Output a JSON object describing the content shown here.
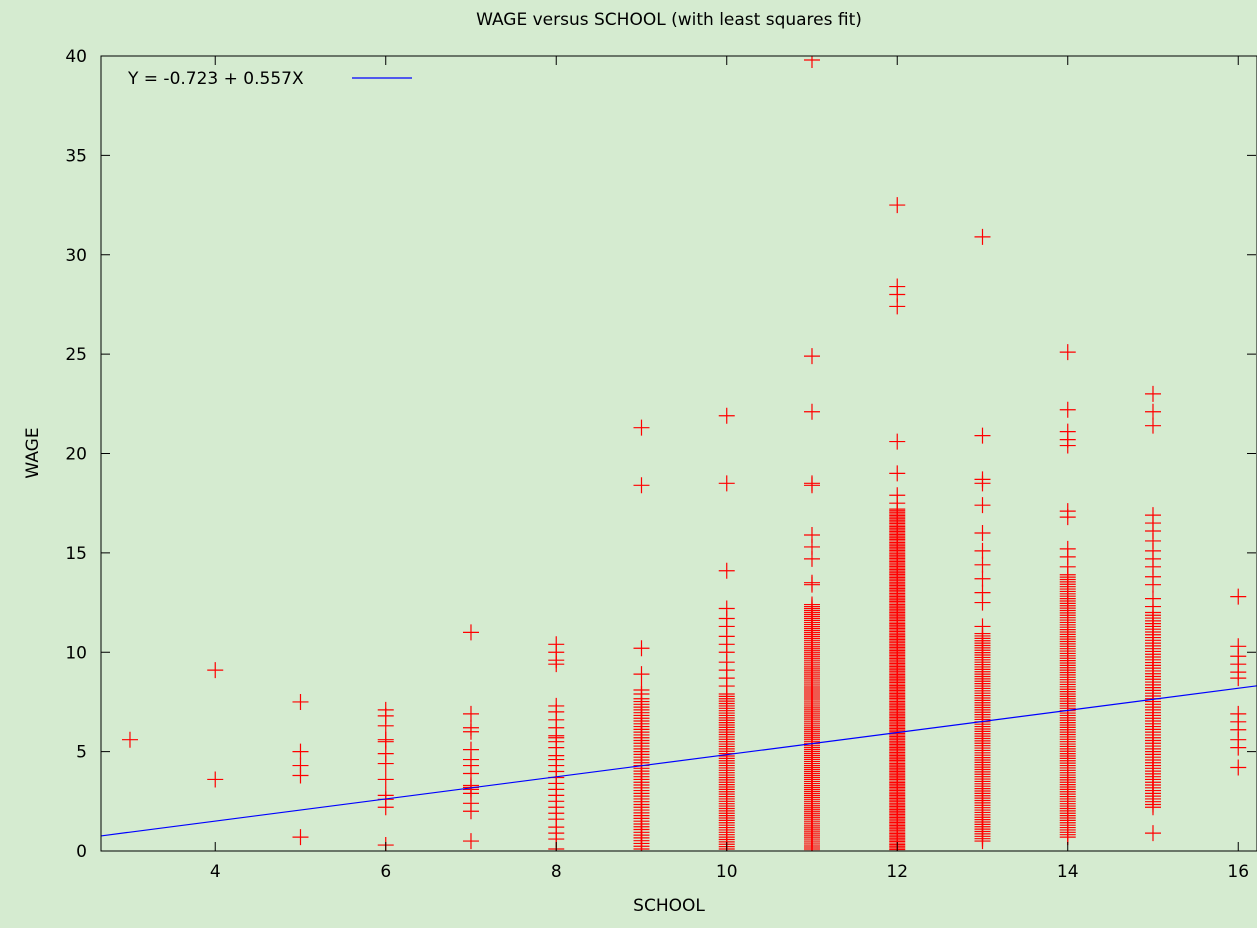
{
  "chart_data": {
    "type": "scatter",
    "title": "WAGE versus SCHOOL (with least squares fit)",
    "xlabel": "SCHOOL",
    "ylabel": "WAGE",
    "xlim": [
      2.66,
      16.22
    ],
    "ylim": [
      0,
      40
    ],
    "xticks": [
      4,
      6,
      8,
      10,
      12,
      14,
      16
    ],
    "yticks": [
      0,
      5,
      10,
      15,
      20,
      25,
      30,
      35,
      40
    ],
    "grid": false,
    "legend_position": "top-left",
    "series": [
      {
        "kind": "points",
        "marker": "+",
        "color": "#ff0000",
        "points": [
          [
            3,
            5.6
          ],
          [
            4,
            9.1
          ],
          [
            4,
            3.6
          ],
          [
            5,
            7.5
          ],
          [
            5,
            5.0
          ],
          [
            5,
            4.3
          ],
          [
            5,
            3.8
          ],
          [
            5,
            0.7
          ],
          [
            6,
            7.1
          ],
          [
            6,
            6.8
          ],
          [
            6,
            6.3
          ],
          [
            6,
            5.6
          ],
          [
            6,
            5.5
          ],
          [
            6,
            4.9
          ],
          [
            6,
            4.4
          ],
          [
            6,
            3.6
          ],
          [
            6,
            2.8
          ],
          [
            6,
            2.6
          ],
          [
            6,
            2.2
          ],
          [
            6,
            0.3
          ],
          [
            7,
            11.0
          ],
          [
            7,
            6.9
          ],
          [
            7,
            6.2
          ],
          [
            7,
            6.0
          ],
          [
            7,
            5.1
          ],
          [
            7,
            4.6
          ],
          [
            7,
            4.3
          ],
          [
            7,
            3.9
          ],
          [
            7,
            3.3
          ],
          [
            7,
            3.2
          ],
          [
            7,
            3.1
          ],
          [
            7,
            2.9
          ],
          [
            7,
            2.4
          ],
          [
            7,
            2.0
          ],
          [
            7,
            0.5
          ],
          [
            8,
            10.4
          ],
          [
            8,
            10.0
          ],
          [
            8,
            9.6
          ],
          [
            8,
            9.4
          ],
          [
            8,
            7.3
          ],
          [
            8,
            7.0
          ],
          [
            8,
            6.6
          ],
          [
            8,
            6.2
          ],
          [
            8,
            5.8
          ],
          [
            8,
            5.7
          ],
          [
            8,
            5.5
          ],
          [
            8,
            5.2
          ],
          [
            8,
            4.8
          ],
          [
            8,
            4.6
          ],
          [
            8,
            4.3
          ],
          [
            8,
            4.0
          ],
          [
            8,
            3.7
          ],
          [
            8,
            3.4
          ],
          [
            8,
            3.1
          ],
          [
            8,
            2.8
          ],
          [
            8,
            2.5
          ],
          [
            8,
            2.2
          ],
          [
            8,
            1.9
          ],
          [
            8,
            1.6
          ],
          [
            8,
            1.2
          ],
          [
            8,
            0.9
          ],
          [
            8,
            0.6
          ],
          [
            8,
            0.1
          ],
          [
            9,
            21.3
          ],
          [
            9,
            18.4
          ],
          [
            9,
            10.2
          ],
          [
            9,
            8.9
          ],
          [
            9,
            8.1
          ],
          [
            9,
            7.9
          ],
          [
            10,
            21.9
          ],
          [
            10,
            18.5
          ],
          [
            10,
            14.1
          ],
          [
            10,
            12.2
          ],
          [
            10,
            11.7
          ],
          [
            10,
            11.3
          ],
          [
            10,
            10.8
          ],
          [
            10,
            10.4
          ],
          [
            10,
            10.0
          ],
          [
            10,
            9.5
          ],
          [
            10,
            9.1
          ],
          [
            10,
            8.7
          ],
          [
            10,
            8.3
          ],
          [
            11,
            39.8
          ],
          [
            11,
            24.9
          ],
          [
            11,
            22.1
          ],
          [
            11,
            18.5
          ],
          [
            11,
            18.4
          ],
          [
            11,
            15.9
          ],
          [
            11,
            15.3
          ],
          [
            11,
            14.7
          ],
          [
            11,
            13.5
          ],
          [
            11,
            13.4
          ],
          [
            11,
            12.4
          ],
          [
            12,
            32.5
          ],
          [
            12,
            28.4
          ],
          [
            12,
            28.0
          ],
          [
            12,
            27.4
          ],
          [
            12,
            20.6
          ],
          [
            12,
            19.0
          ],
          [
            12,
            17.9
          ],
          [
            12,
            17.5
          ],
          [
            13,
            30.9
          ],
          [
            13,
            20.9
          ],
          [
            13,
            18.7
          ],
          [
            13,
            18.5
          ],
          [
            13,
            17.4
          ],
          [
            13,
            16.0
          ],
          [
            13,
            15.1
          ],
          [
            13,
            14.4
          ],
          [
            13,
            13.7
          ],
          [
            13,
            13.0
          ],
          [
            13,
            12.5
          ],
          [
            13,
            11.3
          ],
          [
            14,
            25.1
          ],
          [
            14,
            22.2
          ],
          [
            14,
            21.1
          ],
          [
            14,
            20.7
          ],
          [
            14,
            20.4
          ],
          [
            14,
            17.1
          ],
          [
            14,
            16.8
          ],
          [
            14,
            15.2
          ],
          [
            14,
            14.8
          ],
          [
            14,
            14.3
          ],
          [
            15,
            23.0
          ],
          [
            15,
            22.1
          ],
          [
            15,
            21.4
          ],
          [
            15,
            16.9
          ],
          [
            15,
            16.5
          ],
          [
            15,
            16.1
          ],
          [
            15,
            15.6
          ],
          [
            15,
            15.1
          ],
          [
            15,
            14.7
          ],
          [
            15,
            14.3
          ],
          [
            15,
            13.8
          ],
          [
            15,
            13.4
          ],
          [
            15,
            12.7
          ],
          [
            15,
            12.3
          ],
          [
            15,
            0.9
          ],
          [
            16,
            12.8
          ],
          [
            16,
            10.3
          ],
          [
            16,
            9.8
          ],
          [
            16,
            9.4
          ],
          [
            16,
            9.0
          ],
          [
            16,
            8.7
          ],
          [
            16,
            6.9
          ],
          [
            16,
            6.5
          ],
          [
            16,
            6.1
          ],
          [
            16,
            5.6
          ],
          [
            16,
            5.2
          ],
          [
            16,
            4.2
          ]
        ],
        "bands": [
          {
            "x": 9,
            "ymin": 0.1,
            "ymax": 7.7,
            "step": 0.14
          },
          {
            "x": 10,
            "ymin": 0.1,
            "ymax": 8.0,
            "step": 0.12
          },
          {
            "x": 11,
            "ymin": 0.0,
            "ymax": 12.3,
            "step": 0.1
          },
          {
            "x": 12,
            "ymin": 0.0,
            "ymax": 17.2,
            "step": 0.08
          },
          {
            "x": 13,
            "ymin": 0.5,
            "ymax": 11.0,
            "step": 0.12
          },
          {
            "x": 14,
            "ymin": 0.7,
            "ymax": 14.0,
            "step": 0.12
          },
          {
            "x": 15,
            "ymin": 2.2,
            "ymax": 12.0,
            "step": 0.14
          }
        ]
      },
      {
        "name": "Y = -0.723 + 0.557X",
        "kind": "line",
        "color": "#0000ff",
        "intercept": -0.723,
        "slope": 0.557
      }
    ]
  }
}
